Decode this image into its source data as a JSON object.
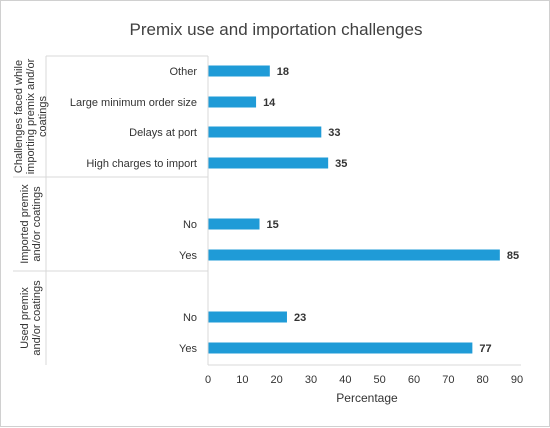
{
  "chart_data": {
    "type": "bar",
    "orientation": "horizontal",
    "title": "Premix use and importation challenges",
    "xlabel": "Percentage",
    "ylabel": "",
    "xlim": [
      0,
      90
    ],
    "xticks": [
      0,
      10,
      20,
      30,
      40,
      50,
      60,
      70,
      80,
      90
    ],
    "grid": false,
    "legend": "none",
    "bar_color": "#1f9bd7",
    "groups": [
      {
        "name": "Challenges faced while importing premix and/or coatings",
        "categories": [
          "Other",
          "Large minimum order size",
          "Delays at port",
          "High charges to import"
        ],
        "values": [
          18,
          14,
          33,
          35
        ]
      },
      {
        "name": "Imported premix and/or coatings",
        "categories": [
          "No",
          "Yes"
        ],
        "values": [
          15,
          85
        ]
      },
      {
        "name": "Used premix and/or coatings",
        "categories": [
          "No",
          "Yes"
        ],
        "values": [
          23,
          77
        ]
      }
    ]
  }
}
